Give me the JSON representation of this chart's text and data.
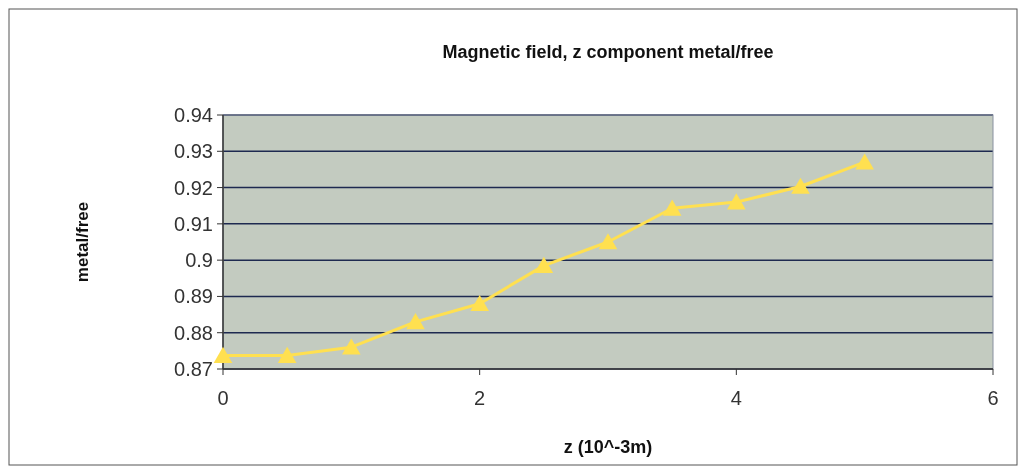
{
  "chart_data": {
    "type": "line",
    "title": "Magnetic field, z component metal/free",
    "xlabel": "z (10^-3m)",
    "ylabel": "metal/free",
    "x": [
      0,
      0.5,
      1,
      1.5,
      2,
      2.5,
      3,
      3.5,
      4,
      4.5,
      5
    ],
    "series": [
      {
        "color": "#ffe050",
        "values": [
          0.8737,
          0.8737,
          0.876,
          0.883,
          0.888,
          0.8985,
          0.905,
          0.9143,
          0.916,
          0.9203,
          0.927
        ]
      }
    ],
    "xlim": [
      0,
      6
    ],
    "xticks": [
      0,
      2,
      4,
      6
    ],
    "ylim": [
      0.87,
      0.94
    ],
    "yticks": [
      0.87,
      0.88,
      0.89,
      0.9,
      0.91,
      0.92,
      0.93,
      0.94
    ],
    "grid": "y",
    "marker": "triangle",
    "line_style": "solid"
  }
}
